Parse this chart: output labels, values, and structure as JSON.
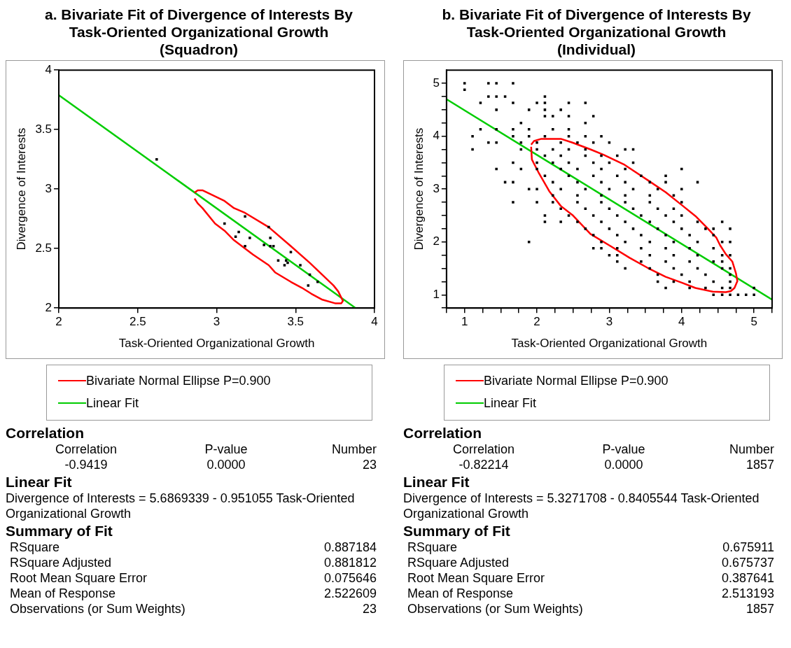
{
  "chart_data": [
    {
      "type": "scatter",
      "title": "a. Bivariate Fit of Divergence of Interests By Task-Oriented Organizational Growth (Squadron)",
      "xlabel": "Task-Oriented Organizational Growth",
      "ylabel": "Divergence of Interests",
      "xlim": [
        2,
        4
      ],
      "ylim": [
        2,
        4
      ],
      "xticks": [
        2,
        2.5,
        3,
        3.5,
        4
      ],
      "yticks": [
        2,
        2.5,
        3,
        3.5,
        4
      ],
      "legend": "bottom",
      "series": [
        {
          "type": "scatter",
          "marker": "square",
          "color": "#000000",
          "x": [
            2.62,
            3.05,
            3.18,
            3.12,
            3.14,
            3.21,
            3.18,
            3.3,
            3.33,
            3.34,
            3.34,
            3.36,
            3.39,
            3.43,
            3.44,
            3.45,
            3.47,
            3.53,
            3.59,
            3.58,
            3.64
          ],
          "values": [
            3.25,
            2.71,
            2.77,
            2.6,
            2.64,
            2.59,
            2.52,
            2.53,
            2.68,
            2.59,
            2.52,
            2.52,
            2.4,
            2.36,
            2.4,
            2.38,
            2.47,
            2.36,
            2.28,
            2.19,
            2.22
          ]
        },
        {
          "type": "line",
          "marker": "none",
          "name": "Bivariate Normal Ellipse P=0.900",
          "color": "#ff0000",
          "x": [
            2.86,
            2.88,
            2.91,
            3.05,
            3.11,
            3.18,
            3.33,
            3.47,
            3.59,
            3.74,
            3.77,
            3.8,
            3.79,
            3.75,
            3.67,
            3.6,
            3.54,
            3.47,
            3.37,
            3.33,
            3.23,
            3.11,
            3.05,
            2.99,
            2.91,
            2.88,
            2.86
          ],
          "values": [
            2.97,
            2.99,
            2.99,
            2.9,
            2.84,
            2.8,
            2.68,
            2.52,
            2.38,
            2.19,
            2.14,
            2.06,
            2.04,
            2.04,
            2.07,
            2.12,
            2.17,
            2.22,
            2.3,
            2.36,
            2.45,
            2.57,
            2.65,
            2.71,
            2.84,
            2.88,
            2.92
          ]
        },
        {
          "type": "line",
          "marker": "none",
          "name": "Linear Fit",
          "color": "#00cc00",
          "x": [
            2,
            3.88
          ],
          "values": [
            3.79,
            2.0
          ]
        }
      ],
      "annotations": [
        "Correlation",
        "Correlation",
        "P-value",
        "Number",
        "-0.9419",
        "0.0000",
        "23",
        "Linear Fit",
        "Divergence of Interests = 5.6869339 - 0.951055 Task-Oriented Organizational Growth",
        "Summary of Fit",
        "RSquare",
        "0.887184",
        "RSquare Adjusted",
        "0.881812",
        "Root Mean Square Error",
        "0.075646",
        "Mean of Response",
        "2.522609",
        "Observations (or Sum Weights)",
        "23"
      ]
    },
    {
      "type": "scatter",
      "title": "b. Bivariate Fit of Divergence of Interests By Task-Oriented Organizational Growth (Individual)",
      "xlabel": "Task-Oriented Organizational Growth",
      "ylabel": "Divergence of Interests",
      "xlim": [
        0.75,
        5.25
      ],
      "ylim": [
        0.75,
        5.25
      ],
      "xticks": [
        {
          "value": 0.75,
          "label": null
        },
        1,
        {
          "value": 1.25,
          "label": null
        },
        {
          "value": 1.5,
          "label": null
        },
        {
          "value": 1.75,
          "label": null
        },
        2,
        {
          "value": 2.25,
          "label": null
        },
        {
          "value": 2.5,
          "label": null
        },
        {
          "value": 2.75,
          "label": null
        },
        3,
        {
          "value": 3.25,
          "label": null
        },
        {
          "value": 3.5,
          "label": null
        },
        {
          "value": 3.75,
          "label": null
        },
        4,
        {
          "value": 4.25,
          "label": null
        },
        {
          "value": 4.5,
          "label": null
        },
        {
          "value": 4.75,
          "label": null
        },
        5,
        {
          "value": 5.25,
          "label": null
        }
      ],
      "yticks": [
        {
          "value": 0.75,
          "label": null
        },
        1,
        {
          "value": 1.25,
          "label": null
        },
        {
          "value": 1.5,
          "label": null
        },
        {
          "value": 1.75,
          "label": null
        },
        2,
        {
          "value": 2.25,
          "label": null
        },
        {
          "value": 2.5,
          "label": null
        },
        {
          "value": 2.75,
          "label": null
        },
        3,
        {
          "value": 3.25,
          "label": null
        },
        {
          "value": 3.5,
          "label": null
        },
        {
          "value": 3.75,
          "label": null
        },
        4,
        {
          "value": 4.25,
          "label": null
        },
        {
          "value": 4.5,
          "label": null
        },
        {
          "value": 4.75,
          "label": null
        },
        5
      ],
      "legend": "bottom",
      "series": [
        {
          "type": "scatter",
          "marker": "square",
          "color": "#000000",
          "x": [
            1,
            1,
            1.33,
            1.44,
            1.67,
            1.33,
            1.44,
            1.56,
            1.22,
            1.67,
            1.44,
            1.11,
            1.11,
            1.33,
            1.44,
            1.22,
            1.44,
            1.56,
            1.67,
            1.67,
            1.89,
            2,
            2.11,
            2.11,
            2.11,
            2.11,
            2.22,
            2.33,
            2.44,
            2.44,
            2.67,
            2.78,
            2.67,
            1.78,
            1.89,
            2,
            2.11,
            2.11,
            2.33,
            4,
            4.22,
            4.56,
            4.67,
            4.89,
            5,
            5,
            3.78,
            3.67,
            3.22,
            3,
            2.78,
            2.89,
            1.44,
            1.67,
            1.89,
            2.22,
            2.44,
            1.67,
            1.89,
            2.11,
            2.44,
            2.67,
            2.89,
            1.78,
            2,
            2.33,
            2.56,
            2.78,
            3,
            1.78,
            2,
            2.22,
            2.44,
            2.67,
            3.22,
            3.33,
            2.11,
            2.33,
            2.67,
            2.89,
            3.11,
            1.67,
            2,
            2.22,
            2.44,
            2.78,
            3,
            3.33,
            1.78,
            2,
            2.33,
            2.56,
            2.89,
            3.22,
            2.11,
            2.44,
            2.78,
            3.11,
            3.44,
            3.78,
            2.22,
            2.56,
            2.89,
            3.22,
            3.56,
            3.78,
            1.89,
            2,
            2.33,
            2.67,
            3,
            3.33,
            3.67,
            4,
            2.22,
            2.56,
            2.89,
            3.22,
            3.56,
            3.89,
            2.22,
            2.56,
            2.89,
            3.22,
            3.56,
            4,
            2.33,
            2.67,
            3,
            3.33,
            3.67,
            3.89,
            2.44,
            2.78,
            3.11,
            3.44,
            3.78,
            4,
            2.56,
            2.89,
            3.22,
            3.56,
            3.89,
            4.22,
            2.67,
            3,
            3.33,
            3.67,
            4,
            4.33,
            4.44,
            2.78,
            3.11,
            3.44,
            3.78,
            4.11,
            4.44,
            2.89,
            3.22,
            3.56,
            3.89,
            4.22,
            4.56,
            4.67,
            3.11,
            3.44,
            3.78,
            4.11,
            4.44,
            3.11,
            3.56,
            3.89,
            4.22,
            4.56,
            4.67,
            3.11,
            3.44,
            3.78,
            4.11,
            4.44,
            4.56,
            3.56,
            3.89,
            4.22,
            4.56,
            4.67,
            3.67,
            4,
            4.33,
            4.67,
            3.89,
            4.11,
            4.44,
            4.67,
            4.11,
            4.33,
            4.56,
            4.67,
            4.44,
            4.56,
            4.67,
            4.78
          ],
          "values": [
            5,
            4.88,
            5,
            5,
            5,
            4.75,
            4.75,
            4.75,
            4.63,
            4.63,
            4.5,
            4,
            3.75,
            3.88,
            3.88,
            4.13,
            3.38,
            3.13,
            3.13,
            2.75,
            2,
            4.63,
            4.75,
            4.63,
            4.5,
            4.38,
            4.38,
            4.5,
            4.63,
            4.38,
            4.63,
            4.38,
            4.25,
            4.25,
            4.5,
            2.75,
            2.5,
            2.38,
            2.38,
            3.38,
            3.13,
            2.38,
            2.25,
            1,
            1,
            1.13,
            1.13,
            1.25,
            1.5,
            1.75,
            1.88,
            1.88,
            4.13,
            4.13,
            4.13,
            4.13,
            4.13,
            4,
            4,
            4,
            4,
            4,
            4,
            3.88,
            3.88,
            3.88,
            3.88,
            3.88,
            3.88,
            3.75,
            3.75,
            3.75,
            3.75,
            3.75,
            3.75,
            3.75,
            3.63,
            3.63,
            3.63,
            3.63,
            3.63,
            3.5,
            3.5,
            3.5,
            3.5,
            3.5,
            3.5,
            3.5,
            3.38,
            3.38,
            3.38,
            3.38,
            3.38,
            3.38,
            3.25,
            3.25,
            3.25,
            3.25,
            3.25,
            3.25,
            3.13,
            3.13,
            3.13,
            3.13,
            3.13,
            3.13,
            3,
            3,
            3,
            3,
            3,
            3,
            3,
            3,
            2.88,
            2.88,
            2.88,
            2.88,
            2.88,
            2.88,
            2.75,
            2.75,
            2.75,
            2.75,
            2.75,
            2.75,
            2.63,
            2.63,
            2.63,
            2.63,
            2.63,
            2.63,
            2.5,
            2.5,
            2.5,
            2.5,
            2.5,
            2.5,
            2.38,
            2.38,
            2.38,
            2.38,
            2.38,
            2.38,
            2.25,
            2.25,
            2.25,
            2.25,
            2.25,
            2.25,
            2.25,
            2.13,
            2.13,
            2.13,
            2.13,
            2.13,
            2.13,
            2,
            2,
            2,
            2,
            2,
            2,
            2,
            1.88,
            1.88,
            1.88,
            1.88,
            1.88,
            1.75,
            1.75,
            1.75,
            1.75,
            1.75,
            1.75,
            1.63,
            1.63,
            1.63,
            1.63,
            1.63,
            1.63,
            1.5,
            1.5,
            1.5,
            1.5,
            1.5,
            1.38,
            1.38,
            1.38,
            1.38,
            1.25,
            1.25,
            1.25,
            1.25,
            1.13,
            1.13,
            1.13,
            1.13,
            1,
            1,
            1,
            1
          ]
        },
        {
          "type": "line",
          "marker": "none",
          "name": "Bivariate Normal Ellipse P=0.900",
          "color": "#ff0000",
          "x": [
            1.92,
            1.96,
            2.06,
            2.33,
            2.49,
            2.74,
            2.92,
            3.21,
            3.53,
            3.78,
            4,
            4.19,
            4.35,
            4.48,
            4.53,
            4.61,
            4.7,
            4.75,
            4.77,
            4.73,
            4.68,
            4.61,
            4.43,
            4.19,
            4,
            3.78,
            3.53,
            3.28,
            3.03,
            2.74,
            2.49,
            2.33,
            2.17,
            2.02,
            1.93,
            1.92
          ],
          "values": [
            3.84,
            3.91,
            3.95,
            3.95,
            3.88,
            3.75,
            3.65,
            3.46,
            3.17,
            2.94,
            2.7,
            2.49,
            2.27,
            2.08,
            1.94,
            1.77,
            1.63,
            1.41,
            1.26,
            1.13,
            1.07,
            1.05,
            1.06,
            1.13,
            1.23,
            1.34,
            1.51,
            1.7,
            1.91,
            2.15,
            2.51,
            2.68,
            2.96,
            3.32,
            3.56,
            3.8
          ]
        },
        {
          "type": "line",
          "marker": "none",
          "name": "Linear Fit",
          "color": "#00cc00",
          "x": [
            0.75,
            5.25
          ],
          "values": [
            4.7,
            0.91
          ]
        }
      ],
      "annotations": [
        "Correlation",
        "Correlation",
        "P-value",
        "Number",
        "-0.82214",
        "0.0000",
        "1857",
        "Linear Fit",
        "Divergence of Interests = 5.3271708 - 0.8405544 Task-Oriented Organizational Growth",
        "Summary of Fit",
        "RSquare",
        "0.675911",
        "RSquare Adjusted",
        "0.675737",
        "Root Mean Square Error",
        "0.387641",
        "Mean of Response",
        "2.513193",
        "Observations (or Sum Weights)",
        "1857"
      ]
    }
  ]
}
